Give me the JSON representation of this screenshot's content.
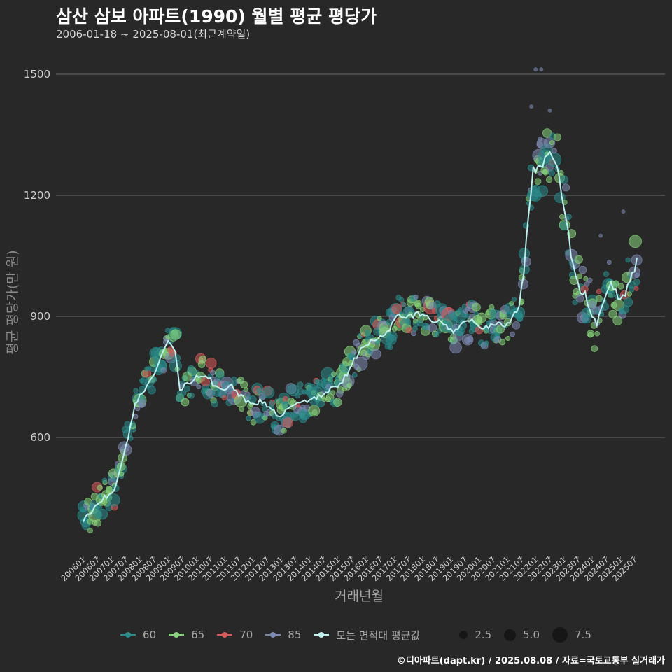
{
  "title": "삼산 삼보 아파트(1990) 월별 평균 평당가",
  "subtitle": "2006-01-18 ~ 2025-08-01(최근계약일)",
  "footer": "©디아파트(dapt.kr) / 2025.08.08 / 자료=국토교통부 실거래가",
  "colors": {
    "background": "#282829",
    "grid": "#6a6a6a",
    "s60": "#2a8c8c",
    "s65": "#86d37a",
    "s70": "#d85a5a",
    "s85": "#7d8ab2",
    "avg": "#bff0ee"
  },
  "chart_data": {
    "type": "scatter",
    "xlabel": "거래년월",
    "ylabel": "평균 평당가(만 원)",
    "ylim": [
      360,
      1520
    ],
    "yticks": [
      600,
      900,
      1200,
      1500
    ],
    "xrange": [
      "2006-01",
      "2025-08"
    ],
    "xticks": [
      "200601",
      "200607",
      "200701",
      "200707",
      "200801",
      "200807",
      "200901",
      "200907",
      "201001",
      "201007",
      "201101",
      "201107",
      "201201",
      "201207",
      "201301",
      "201307",
      "201401",
      "201407",
      "201501",
      "201507",
      "201601",
      "201607",
      "201701",
      "201707",
      "201801",
      "201807",
      "201901",
      "201907",
      "202001",
      "202007",
      "202101",
      "202107",
      "202201",
      "202207",
      "202301",
      "202307",
      "202401",
      "202407",
      "202501",
      "202507"
    ],
    "legend": {
      "series": [
        {
          "name": "60",
          "color": "#2a8c8c"
        },
        {
          "name": "65",
          "color": "#86d37a"
        },
        {
          "name": "70",
          "color": "#d85a5a"
        },
        {
          "name": "85",
          "color": "#7d8ab2"
        },
        {
          "name": "모든 면적대 평균값",
          "color": "#bff0ee"
        }
      ],
      "sizes": [
        "2.5",
        "5.0",
        "7.5"
      ]
    },
    "average_line": [
      [
        "2006-01",
        395
      ],
      [
        "2006-05",
        420
      ],
      [
        "2006-10",
        450
      ],
      [
        "2007-02",
        470
      ],
      [
        "2007-05",
        525
      ],
      [
        "2007-08",
        600
      ],
      [
        "2007-11",
        680
      ],
      [
        "2008-03",
        720
      ],
      [
        "2008-07",
        760
      ],
      [
        "2008-11",
        810
      ],
      [
        "2009-01",
        840
      ],
      [
        "2009-04",
        820
      ],
      [
        "2009-06",
        720
      ],
      [
        "2009-09",
        735
      ],
      [
        "2010-01",
        750
      ],
      [
        "2010-05",
        758
      ],
      [
        "2010-09",
        725
      ],
      [
        "2011-01",
        720
      ],
      [
        "2011-04",
        725
      ],
      [
        "2011-08",
        700
      ],
      [
        "2011-12",
        680
      ],
      [
        "2012-04",
        690
      ],
      [
        "2012-09",
        668
      ],
      [
        "2012-12",
        648
      ],
      [
        "2013-04",
        672
      ],
      [
        "2013-08",
        690
      ],
      [
        "2014-01",
        690
      ],
      [
        "2014-06",
        705
      ],
      [
        "2014-10",
        718
      ],
      [
        "2015-03",
        740
      ],
      [
        "2015-07",
        780
      ],
      [
        "2015-11",
        820
      ],
      [
        "2016-03",
        840
      ],
      [
        "2016-07",
        850
      ],
      [
        "2016-11",
        868
      ],
      [
        "2017-03",
        905
      ],
      [
        "2017-07",
        900
      ],
      [
        "2017-11",
        905
      ],
      [
        "2018-03",
        895
      ],
      [
        "2018-07",
        888
      ],
      [
        "2018-11",
        880
      ],
      [
        "2019-02",
        860
      ],
      [
        "2019-06",
        880
      ],
      [
        "2019-10",
        890
      ],
      [
        "2020-02",
        870
      ],
      [
        "2020-06",
        878
      ],
      [
        "2020-10",
        880
      ],
      [
        "2021-02",
        880
      ],
      [
        "2021-06",
        930
      ],
      [
        "2021-08",
        1010
      ],
      [
        "2021-10",
        1150
      ],
      [
        "2021-12",
        1262
      ],
      [
        "2022-03",
        1270
      ],
      [
        "2022-06",
        1290
      ],
      [
        "2022-08",
        1305
      ],
      [
        "2022-10",
        1280
      ],
      [
        "2022-12",
        1195
      ],
      [
        "2023-02",
        1150
      ],
      [
        "2023-04",
        1040
      ],
      [
        "2023-07",
        975
      ],
      [
        "2023-10",
        950
      ],
      [
        "2024-01",
        905
      ],
      [
        "2024-03",
        868
      ],
      [
        "2024-05",
        930
      ],
      [
        "2024-09",
        990
      ],
      [
        "2024-12",
        945
      ],
      [
        "2025-03",
        960
      ],
      [
        "2025-06",
        1000
      ],
      [
        "2025-08",
        1035
      ]
    ]
  }
}
